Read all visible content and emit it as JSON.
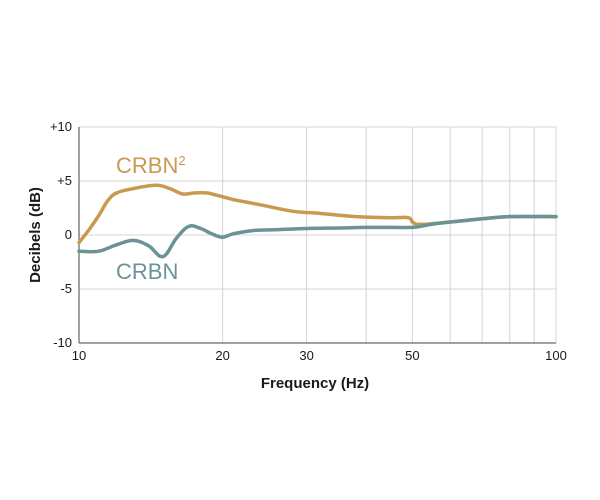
{
  "chart_data": {
    "type": "line",
    "title": "",
    "xlabel": "Frequency (Hz)",
    "ylabel": "Decibels (dB)",
    "x_scale": "log",
    "xlim": [
      10,
      100
    ],
    "ylim": [
      -10,
      10
    ],
    "x_ticks": [
      10,
      20,
      30,
      50,
      100
    ],
    "x_tick_labels": [
      "10",
      "20",
      "30",
      "50",
      "100"
    ],
    "x_minor_gridlines": [
      40,
      60,
      70,
      80,
      90
    ],
    "y_ticks": [
      10,
      5,
      0,
      -5,
      -10
    ],
    "y_tick_labels": [
      "+10",
      "+5",
      "0",
      "-5",
      "-10"
    ],
    "grid": true,
    "legend": "inline labels",
    "series": [
      {
        "name": "CRBN",
        "superscript": "2",
        "color": "#c9994f",
        "x": [
          10,
          10.5,
          11,
          11.5,
          12,
          13,
          14.5,
          15.5,
          16.5,
          17.5,
          18.5,
          19,
          21,
          24,
          28,
          32,
          38,
          45,
          49,
          50,
          51,
          52,
          53.5,
          60,
          70,
          80,
          90,
          100
        ],
        "y": [
          -0.7,
          0.5,
          1.8,
          3.2,
          3.9,
          4.3,
          4.6,
          4.3,
          3.8,
          3.9,
          3.9,
          3.8,
          3.3,
          2.8,
          2.2,
          2.0,
          1.7,
          1.6,
          1.6,
          1.2,
          1.0,
          1.0,
          1.0,
          1.2,
          1.5,
          1.7,
          1.7,
          1.7
        ]
      },
      {
        "name": "CRBN",
        "color": "#6a9395",
        "x": [
          10,
          11,
          12,
          13,
          14,
          15,
          16,
          17,
          18,
          19,
          20,
          21,
          23,
          26,
          30,
          35,
          40,
          45,
          50,
          52,
          55,
          60,
          70,
          80,
          100
        ],
        "y": [
          -1.5,
          -1.5,
          -0.9,
          -0.5,
          -1.0,
          -2.0,
          -0.3,
          0.8,
          0.6,
          0.1,
          -0.2,
          0.1,
          0.4,
          0.5,
          0.6,
          0.65,
          0.7,
          0.7,
          0.7,
          0.8,
          1.0,
          1.2,
          1.5,
          1.7,
          1.7
        ]
      }
    ]
  }
}
